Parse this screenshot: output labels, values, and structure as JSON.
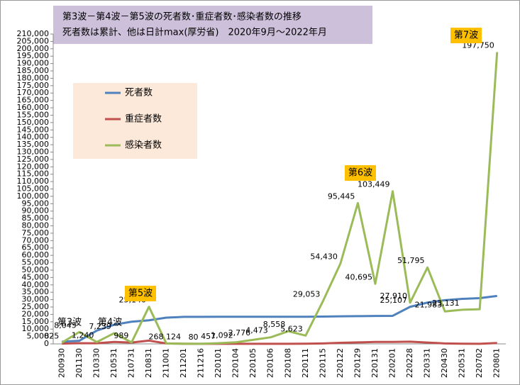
{
  "chart_data": {
    "type": "line",
    "title": "第3波－第4波－第5波の死者数･重症者数･感染者数の推移",
    "subtitle": "死者数は累計、他は日計max(厚労省)　2020年9月～2022年月",
    "categories": [
      "200930",
      "201130",
      "210330",
      "210531",
      "210731",
      "210831",
      "211001",
      "211201",
      "211216",
      "220101",
      "220104",
      "220105",
      "220106",
      "220108",
      "220111",
      "220115",
      "220122",
      "220129",
      "220131",
      "220201",
      "220228",
      "220331",
      "220430",
      "220531",
      "220702",
      "220801"
    ],
    "series": [
      {
        "name": "死者数",
        "color": "#4f81bd",
        "values": [
          1500,
          2100,
          9000,
          13000,
          15000,
          16000,
          17800,
          18300,
          18300,
          18400,
          18400,
          18400,
          18400,
          18400,
          18400,
          18500,
          18700,
          18800,
          18900,
          19000,
          25107,
          28000,
          29600,
          30500,
          31000,
          32500
        ],
        "value_labels": [
          null,
          null,
          null,
          null,
          null,
          null,
          null,
          null,
          null,
          null,
          null,
          null,
          null,
          null,
          null,
          null,
          null,
          null,
          null,
          null,
          "25,107",
          null,
          null,
          null,
          null,
          null
        ]
      },
      {
        "name": "重症者数",
        "color": "#c0504d",
        "values": [
          200,
          500,
          400,
          1300,
          900,
          2200,
          300,
          60,
          40,
          50,
          50,
          60,
          70,
          80,
          100,
          300,
          700,
          1000,
          1300,
          1300,
          1500,
          900,
          300,
          100,
          60,
          600
        ]
      },
      {
        "name": "感染者数",
        "color": "#9bbb59",
        "values": [
          825,
          8045,
          1240,
          7239,
          989,
          25140,
          268,
          124,
          80,
          457,
          1092,
          2776,
          4473,
          8558,
          5623,
          29053,
          54430,
          95445,
          40695,
          103449,
          27910,
          51795,
          21983,
          23131,
          23500,
          197750
        ],
        "value_labels": [
          "825",
          "8,045",
          "1,240",
          "7,239",
          "989",
          "25,140",
          "268",
          "124",
          "80",
          "457",
          "1,092",
          "2,776",
          "4,473",
          "8,558",
          "5,623",
          "29,053",
          "54,430",
          "95,445",
          "40,695",
          "103,449",
          "27,910",
          "51,795",
          "21,983",
          "23,131",
          null,
          "197,750"
        ]
      }
    ],
    "annotations": [
      "第3波",
      "第4波",
      "第5波",
      "第6波",
      "第7波"
    ],
    "ylim": [
      0,
      210000
    ],
    "yticks": [
      0,
      {
        "value": 5000,
        "label": "5,000"
      },
      {
        "value": 10000,
        "label": "10,000"
      },
      {
        "value": 15000,
        "label": "15,000"
      },
      {
        "value": 20000,
        "label": "20,000"
      },
      {
        "value": 25000,
        "label": "25,000"
      },
      {
        "value": 30000,
        "label": "30,000"
      },
      {
        "value": 35000,
        "label": "35,000"
      },
      {
        "value": 40000,
        "label": "40,000"
      },
      {
        "value": 45000,
        "label": "45,000"
      },
      {
        "value": 50000,
        "label": "50,000"
      },
      {
        "value": 55000,
        "label": "55,000"
      },
      {
        "value": 60000,
        "label": "60,000"
      },
      {
        "value": 65000,
        "label": "65,000"
      },
      {
        "value": 70000,
        "label": "70,000"
      },
      {
        "value": 75000,
        "label": "75,000"
      },
      {
        "value": 80000,
        "label": "80,000"
      },
      {
        "value": 85000,
        "label": "85,000"
      },
      {
        "value": 90000,
        "label": "90,000"
      },
      {
        "value": 95000,
        "label": "95,000"
      },
      {
        "value": 100000,
        "label": "100,000"
      },
      {
        "value": 105000,
        "label": "105,000"
      },
      {
        "value": 110000,
        "label": "110,000"
      },
      {
        "value": 115000,
        "label": "115,000"
      },
      {
        "value": 120000,
        "label": "120,000"
      },
      {
        "value": 125000,
        "label": "125,000"
      },
      {
        "value": 130000,
        "label": "130,000"
      },
      {
        "value": 135000,
        "label": "135,000"
      },
      {
        "value": 140000,
        "label": "140,000"
      },
      {
        "value": 145000,
        "label": "145,000"
      },
      {
        "value": 150000,
        "label": "150,000"
      },
      {
        "value": 155000,
        "label": "155,000"
      },
      {
        "value": 160000,
        "label": "160,000"
      },
      {
        "value": 165000,
        "label": "165,000"
      },
      {
        "value": 170000,
        "label": "170,000"
      },
      {
        "value": 175000,
        "label": "175,000"
      },
      {
        "value": 180000,
        "label": "180,000"
      },
      {
        "value": 185000,
        "label": "185,000"
      },
      {
        "value": 190000,
        "label": "190,000"
      },
      {
        "value": 195000,
        "label": "195,000"
      },
      {
        "value": 200000,
        "label": "200,000"
      },
      {
        "value": 205000,
        "label": "205,000"
      },
      {
        "value": 210000,
        "label": "210,000"
      }
    ],
    "grid": false
  }
}
